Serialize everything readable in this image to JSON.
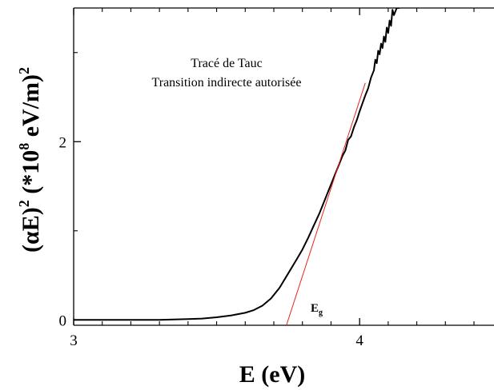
{
  "chart_data": {
    "type": "line",
    "xlabel": "E (eV)",
    "ylabel_parts": {
      "a": "(αE)",
      "b": "2",
      "c": " (*10",
      "d": "8",
      "e": " eV/m)",
      "f": "2"
    },
    "xlim": [
      3.0,
      4.47
    ],
    "ylim": [
      -0.06,
      3.5
    ],
    "x_ticks": [
      3,
      4
    ],
    "x_minor_ticks": [
      3.1,
      3.2,
      3.3,
      3.4,
      3.5,
      3.6,
      3.7,
      3.8,
      3.9,
      4.1,
      4.2,
      4.3,
      4.4
    ],
    "y_ticks": [
      0,
      2
    ],
    "y_minor_ticks": [
      1,
      3
    ],
    "annotations": {
      "title_line1": "Tracé de Tauc",
      "title_line2": "Transition indirecte autorisée",
      "eg_main": "E",
      "eg_sub": "g"
    },
    "series": [
      {
        "color": "#000000",
        "x": [
          3.0,
          3.1,
          3.2,
          3.3,
          3.4,
          3.45,
          3.5,
          3.55,
          3.6,
          3.63,
          3.66,
          3.69,
          3.72,
          3.75,
          3.78,
          3.8,
          3.82,
          3.84,
          3.86,
          3.88,
          3.9,
          3.92,
          3.94,
          3.95,
          3.96,
          3.97,
          3.98,
          3.99,
          4.0,
          4.01,
          4.02,
          4.03,
          4.04,
          4.05,
          4.055,
          4.06,
          4.065,
          4.07,
          4.075,
          4.08,
          4.085,
          4.09,
          4.095,
          4.1,
          4.105,
          4.11,
          4.115,
          4.12,
          4.13,
          4.14
        ],
        "y": [
          0.0,
          0.0,
          0.0,
          0.0,
          0.01,
          0.015,
          0.03,
          0.05,
          0.08,
          0.11,
          0.16,
          0.24,
          0.36,
          0.52,
          0.68,
          0.79,
          0.92,
          1.06,
          1.2,
          1.36,
          1.52,
          1.68,
          1.84,
          1.9,
          2.02,
          2.06,
          2.16,
          2.24,
          2.34,
          2.43,
          2.52,
          2.6,
          2.72,
          2.8,
          2.92,
          2.88,
          3.02,
          2.98,
          3.1,
          3.05,
          3.18,
          3.12,
          3.28,
          3.22,
          3.36,
          3.3,
          3.48,
          3.42,
          3.5,
          3.5
        ]
      },
      {
        "color": "#e8251f",
        "x": [
          3.74,
          4.02
        ],
        "y": [
          -0.1,
          2.66
        ]
      }
    ]
  }
}
